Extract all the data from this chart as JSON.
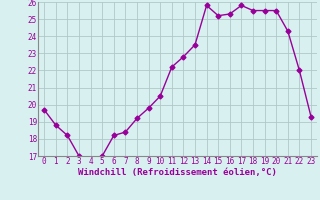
{
  "x": [
    0,
    1,
    2,
    3,
    4,
    5,
    6,
    7,
    8,
    9,
    10,
    11,
    12,
    13,
    14,
    15,
    16,
    17,
    18,
    19,
    20,
    21,
    22,
    23
  ],
  "y": [
    19.7,
    18.8,
    18.2,
    17.0,
    16.8,
    17.0,
    18.2,
    18.4,
    19.2,
    19.8,
    20.5,
    22.2,
    22.8,
    23.5,
    25.8,
    25.2,
    25.3,
    25.8,
    25.5,
    25.5,
    25.5,
    24.3,
    22.0,
    19.3
  ],
  "line_color": "#990099",
  "marker": "D",
  "marker_size": 2.5,
  "bg_color": "#d8f0f0",
  "grid_color": "#b0c8c8",
  "xlabel": "Windchill (Refroidissement éolien,°C)",
  "ylim": [
    17,
    26
  ],
  "xlim_min": -0.5,
  "xlim_max": 23.5,
  "yticks": [
    17,
    18,
    19,
    20,
    21,
    22,
    23,
    24,
    25,
    26
  ],
  "xticks": [
    0,
    1,
    2,
    3,
    4,
    5,
    6,
    7,
    8,
    9,
    10,
    11,
    12,
    13,
    14,
    15,
    16,
    17,
    18,
    19,
    20,
    21,
    22,
    23
  ],
  "xlabel_fontsize": 6.5,
  "tick_fontsize": 5.5,
  "line_width": 1.0
}
